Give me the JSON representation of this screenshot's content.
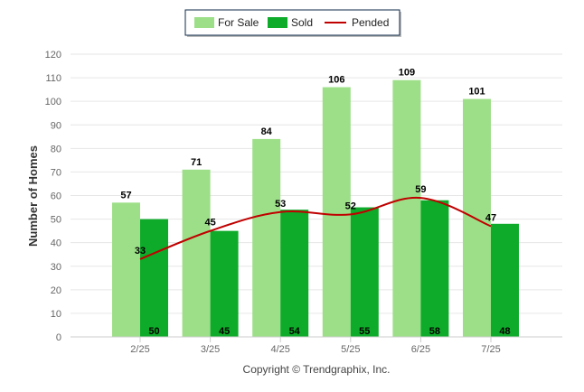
{
  "chart_data": {
    "type": "bar",
    "categories": [
      "2/25",
      "3/25",
      "4/25",
      "5/25",
      "6/25",
      "7/25"
    ],
    "series": [
      {
        "name": "For Sale",
        "kind": "bar",
        "color": "#9ddf88",
        "values": [
          57,
          71,
          84,
          106,
          109,
          101
        ],
        "label_position": "top"
      },
      {
        "name": "Sold",
        "kind": "bar",
        "color": "#0eab2a",
        "values": [
          50,
          45,
          54,
          55,
          58,
          48
        ],
        "label_position": "bottom"
      },
      {
        "name": "Pended",
        "kind": "line",
        "color": "#c00000",
        "smooth": true,
        "values": [
          33,
          45,
          53,
          52,
          59,
          47
        ]
      }
    ],
    "ylabel": "Number of Homes",
    "xlabel": "",
    "ylim": [
      0,
      120
    ],
    "yticks": [
      0,
      10,
      20,
      30,
      40,
      50,
      60,
      70,
      80,
      90,
      100,
      110,
      120
    ],
    "grid": true,
    "legend_position": "top-center",
    "credit": "Copyright © Trendgraphix, Inc."
  }
}
